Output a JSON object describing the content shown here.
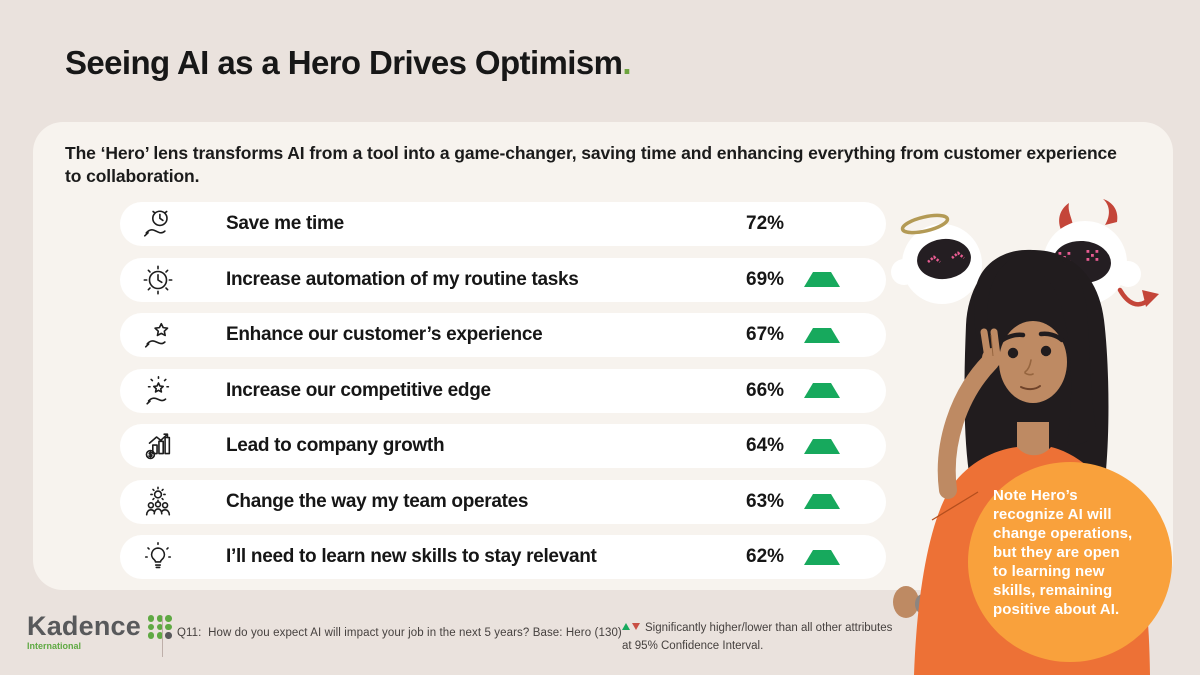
{
  "title": {
    "text": "Seeing AI as a Hero Drives Optimism",
    "period": "."
  },
  "subtitle": "The ‘Hero’ lens transforms AI from a tool into a game-changer, saving time and enhancing everything from customer experience to collaboration.",
  "rows": [
    {
      "icon": "clock-in-hand-icon",
      "label": "Save me time",
      "value": "72%",
      "significant": false
    },
    {
      "icon": "automation-clock-icon",
      "label": "Increase automation of my routine tasks",
      "value": "69%",
      "significant": true
    },
    {
      "icon": "star-in-hand-icon",
      "label": "Enhance our customer’s experience",
      "value": "67%",
      "significant": true
    },
    {
      "icon": "sparkle-star-hand-icon",
      "label": "Increase our competitive edge",
      "value": "66%",
      "significant": true
    },
    {
      "icon": "growth-chart-icon",
      "label": "Lead to company growth",
      "value": "64%",
      "significant": true
    },
    {
      "icon": "gear-team-icon",
      "label": "Change the way my team operates",
      "value": "63%",
      "significant": true
    },
    {
      "icon": "lightbulb-icon",
      "label": "I’ll need to learn new skills to stay relevant",
      "value": "62%",
      "significant": true
    }
  ],
  "chart_data": {
    "type": "bar",
    "title": "Seeing AI as a Hero Drives Optimism.",
    "categories": [
      "Save me time",
      "Increase automation of my routine tasks",
      "Enhance our customer’s experience",
      "Increase our competitive edge",
      "Lead to company growth",
      "Change the way my team operates",
      "I’ll need to learn new skills to stay relevant"
    ],
    "values": [
      72,
      69,
      67,
      66,
      64,
      63,
      62
    ],
    "value_unit": "%",
    "significantly_higher": [
      false,
      true,
      true,
      true,
      true,
      true,
      true
    ],
    "xlabel": "",
    "ylabel": "",
    "legend_position": "bottom",
    "grid": false
  },
  "note_bubble": "Note Hero’s recognize AI will change operations, but they are open to learning new skills, remaining positive about AI.",
  "footer": {
    "logo_name": "Kadence",
    "logo_sub": "International",
    "question": "Q11:  How do you expect AI will impact your job in the next 5 years? Base: Hero (130)",
    "legend_line1": "Significantly higher/lower than all other attributes",
    "legend_line2": "at 95% Confidence Interval."
  },
  "colors": {
    "accent-green": "#6DA43E",
    "sig-green": "#17A95D",
    "sig-red": "#C94F44",
    "note-orange": "#F9A13C",
    "shirt-orange": "#ED7136",
    "logo-green": "#5FA943",
    "logo-gray": "#58595B"
  }
}
